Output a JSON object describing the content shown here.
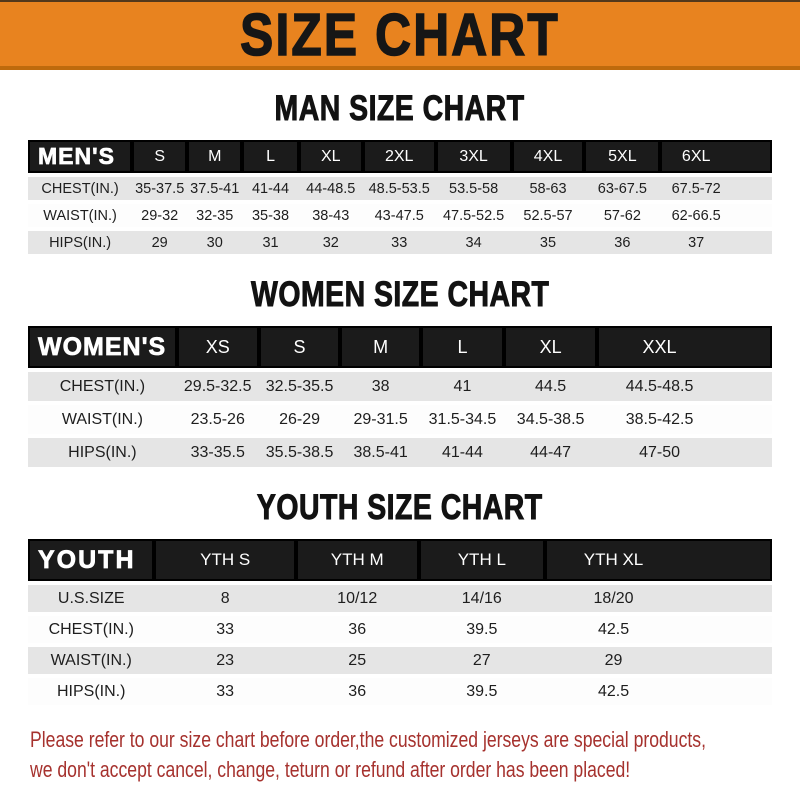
{
  "banner": {
    "title": "SIZE CHART",
    "bg_color": "#E8831F",
    "text_color": "#161616"
  },
  "chart_data": [
    {
      "type": "table",
      "title": "MAN SIZE CHART",
      "corner": "MEN'S",
      "columns": [
        "S",
        "M",
        "L",
        "XL",
        "2XL",
        "3XL",
        "4XL",
        "5XL",
        "6XL"
      ],
      "rows": [
        {
          "label": "CHEST(IN.)",
          "values": [
            "35-37.5",
            "37.5-41",
            "41-44",
            "44-48.5",
            "48.5-53.5",
            "53.5-58",
            "58-63",
            "63-67.5",
            "67.5-72"
          ]
        },
        {
          "label": "WAIST(IN.)",
          "values": [
            "29-32",
            "32-35",
            "35-38",
            "38-43",
            "43-47.5",
            "47.5-52.5",
            "52.5-57",
            "57-62",
            "62-66.5"
          ]
        },
        {
          "label": "HIPS(IN.)",
          "values": [
            "29",
            "30",
            "31",
            "32",
            "33",
            "34",
            "35",
            "36",
            "37"
          ]
        }
      ]
    },
    {
      "type": "table",
      "title": "WOMEN SIZE CHART",
      "corner": "WOMEN'S",
      "columns": [
        "XS",
        "S",
        "M",
        "L",
        "XL",
        "XXL"
      ],
      "rows": [
        {
          "label": "CHEST(IN.)",
          "values": [
            "29.5-32.5",
            "32.5-35.5",
            "38",
            "41",
            "44.5",
            "44.5-48.5"
          ]
        },
        {
          "label": "WAIST(IN.)",
          "values": [
            "23.5-26",
            "26-29",
            "29-31.5",
            "31.5-34.5",
            "34.5-38.5",
            "38.5-42.5"
          ]
        },
        {
          "label": "HIPS(IN.)",
          "values": [
            "33-35.5",
            "35.5-38.5",
            "38.5-41",
            "41-44",
            "44-47",
            "47-50"
          ]
        }
      ]
    },
    {
      "type": "table",
      "title": "YOUTH SIZE CHART",
      "corner": "YOUTH",
      "columns": [
        "YTH S",
        "YTH M",
        "YTH L",
        "YTH XL"
      ],
      "rows": [
        {
          "label": "U.S.SIZE",
          "values": [
            "8",
            "10/12",
            "14/16",
            "18/20"
          ]
        },
        {
          "label": "CHEST(IN.)",
          "values": [
            "33",
            "36",
            "39.5",
            "42.5"
          ]
        },
        {
          "label": "WAIST(IN.)",
          "values": [
            "23",
            "25",
            "27",
            "29"
          ]
        },
        {
          "label": "HIPS(IN.)",
          "values": [
            "33",
            "36",
            "39.5",
            "42.5"
          ]
        }
      ]
    }
  ],
  "footer": {
    "line1": "Please refer to our size chart before order,the customized jerseys are special products,",
    "line2": "we don't accept cancel, change, teturn or refund after order has been placed!",
    "text_color": "#A6322E"
  }
}
